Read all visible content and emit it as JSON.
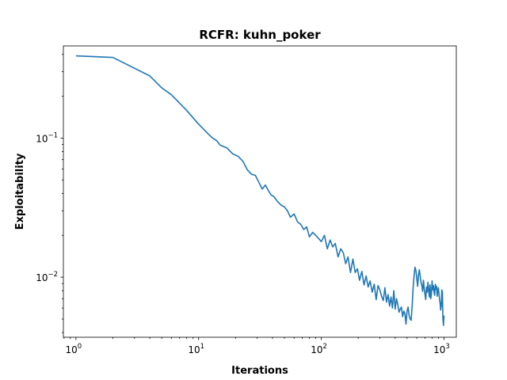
{
  "chart_data": {
    "type": "line",
    "title": "RCFR: kuhn_poker",
    "xlabel": "Iterations",
    "ylabel": "Exploitability",
    "xscale": "log",
    "yscale": "log",
    "xlim": [
      0.79,
      1260
    ],
    "ylim": [
      0.0037,
      0.46
    ],
    "grid": false,
    "xticks": [
      {
        "value": 1,
        "base": "10",
        "exp": "0"
      },
      {
        "value": 10,
        "base": "10",
        "exp": "1"
      },
      {
        "value": 100,
        "base": "10",
        "exp": "2"
      },
      {
        "value": 1000,
        "base": "10",
        "exp": "3"
      }
    ],
    "yticks": [
      {
        "value": 0.1,
        "base": "10",
        "exp": "−1"
      },
      {
        "value": 0.01,
        "base": "10",
        "exp": "−2"
      }
    ],
    "line_color": "#1f77b4",
    "series": [
      {
        "x": [
          1,
          2,
          4,
          5,
          6,
          8,
          10,
          12,
          13,
          14,
          15,
          17,
          19,
          21,
          23,
          25,
          27,
          29,
          31,
          33,
          35,
          37,
          39,
          41,
          44,
          47,
          50,
          53,
          56,
          60,
          64,
          68,
          72,
          76,
          80,
          85,
          90,
          95,
          100,
          106,
          112,
          118,
          124,
          130,
          137,
          144,
          151,
          158,
          165,
          173,
          181,
          189,
          197,
          205,
          214,
          223,
          232,
          241,
          250,
          260,
          270,
          280,
          290,
          300,
          310,
          320,
          330,
          340,
          350,
          360,
          370,
          380,
          390,
          400,
          410,
          420,
          430,
          440,
          450,
          460,
          470,
          480,
          490,
          500,
          510,
          520,
          530,
          540,
          550,
          560,
          570,
          580,
          590,
          600,
          610,
          620,
          630,
          640,
          650,
          660,
          670,
          680,
          690,
          700,
          710,
          720,
          730,
          740,
          750,
          760,
          770,
          780,
          790,
          800,
          810,
          820,
          830,
          840,
          850,
          860,
          870,
          880,
          890,
          900,
          910,
          920,
          930,
          940,
          950,
          960,
          970,
          980,
          990,
          1000
        ],
        "y": [
          0.39,
          0.38,
          0.28,
          0.23,
          0.205,
          0.158,
          0.126,
          0.107,
          0.1,
          0.096,
          0.089,
          0.085,
          0.077,
          0.074,
          0.068,
          0.059,
          0.055,
          0.054,
          0.048,
          0.043,
          0.046,
          0.042,
          0.039,
          0.038,
          0.035,
          0.033,
          0.032,
          0.03,
          0.027,
          0.0285,
          0.025,
          0.024,
          0.022,
          0.023,
          0.0195,
          0.021,
          0.02,
          0.019,
          0.018,
          0.02,
          0.016,
          0.0185,
          0.0165,
          0.0175,
          0.014,
          0.016,
          0.015,
          0.0125,
          0.014,
          0.0108,
          0.0135,
          0.0108,
          0.0115,
          0.0095,
          0.011,
          0.0088,
          0.0102,
          0.0085,
          0.0094,
          0.0078,
          0.0089,
          0.0069,
          0.0087,
          0.0081,
          0.0073,
          0.0068,
          0.0084,
          0.0066,
          0.0075,
          0.0062,
          0.0072,
          0.006,
          0.008,
          0.0059,
          0.007,
          0.0064,
          0.0056,
          0.0059,
          0.0061,
          0.0052,
          0.0057,
          0.0055,
          0.0046,
          0.0057,
          0.0061,
          0.0053,
          0.005,
          0.0049,
          0.0062,
          0.0083,
          0.0102,
          0.0118,
          0.0112,
          0.0098,
          0.0086,
          0.0104,
          0.0113,
          0.0101,
          0.0092,
          0.0087,
          0.0079,
          0.0095,
          0.0083,
          0.0075,
          0.0069,
          0.0085,
          0.0078,
          0.0092,
          0.0081,
          0.0072,
          0.0088,
          0.007,
          0.0076,
          0.0094,
          0.0081,
          0.0087,
          0.0078,
          0.0074,
          0.0089,
          0.0082,
          0.0086,
          0.0073,
          0.0079,
          0.0084,
          0.0076,
          0.0069,
          0.0065,
          0.0058,
          0.0062,
          0.0081,
          0.0078,
          0.0051,
          0.0045,
          0.0053
        ]
      }
    ]
  }
}
